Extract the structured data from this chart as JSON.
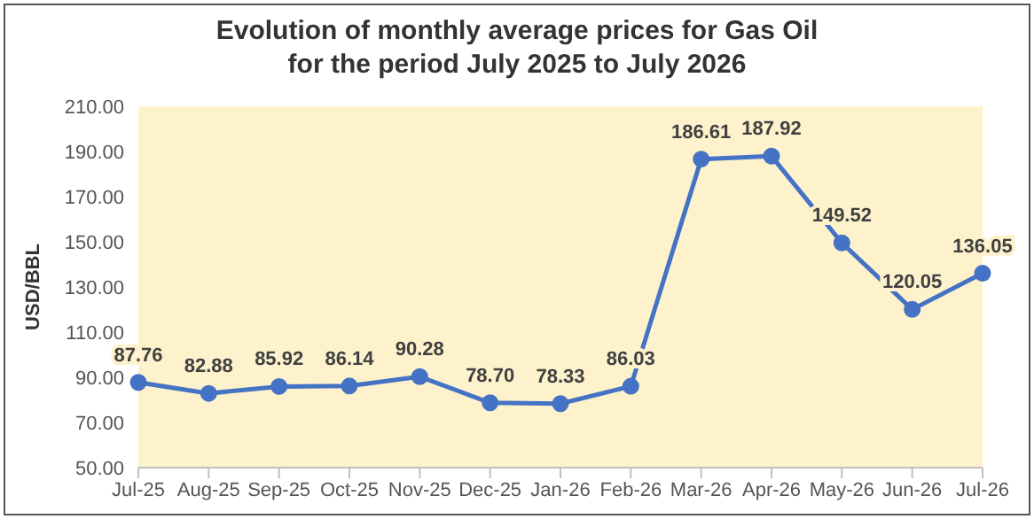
{
  "chart_data": {
    "type": "line",
    "title": "Evolution of monthly average prices for Gas Oil\nfor the period July 2025 to July 2026",
    "ylabel": "USD/BBL",
    "categories": [
      "Jul-25",
      "Aug-25",
      "Sep-25",
      "Oct-25",
      "Nov-25",
      "Dec-25",
      "Jan-26",
      "Feb-26",
      "Mar-26",
      "Apr-26",
      "May-26",
      "Jun-26",
      "Jul-26"
    ],
    "series": [
      {
        "color": "#4472c4",
        "values": [
          87.76,
          82.88,
          85.92,
          86.14,
          90.28,
          78.7,
          78.33,
          86.03,
          186.61,
          187.92,
          149.52,
          120.05,
          136.05
        ],
        "value_labels": [
          "87.76",
          "82.88",
          "85.92",
          "86.14",
          "90.28",
          "78.70",
          "78.33",
          "86.03",
          "186.61",
          "187.92",
          "149.52",
          "120.05",
          "136.05"
        ]
      }
    ],
    "ylim": [
      50,
      210
    ],
    "yticks": [
      {
        "value": 50,
        "label": "50.00"
      },
      {
        "value": 70,
        "label": "70.00"
      },
      {
        "value": 90,
        "label": "90.00"
      },
      {
        "value": 110,
        "label": "110.00"
      },
      {
        "value": 130,
        "label": "130.00"
      },
      {
        "value": 150,
        "label": "150.00"
      },
      {
        "value": 170,
        "label": "170.00"
      },
      {
        "value": 190,
        "label": "190.00"
      },
      {
        "value": 210,
        "label": "210.00"
      }
    ],
    "grid": false,
    "legend": false,
    "marker": "circle",
    "line_style": "solid"
  }
}
